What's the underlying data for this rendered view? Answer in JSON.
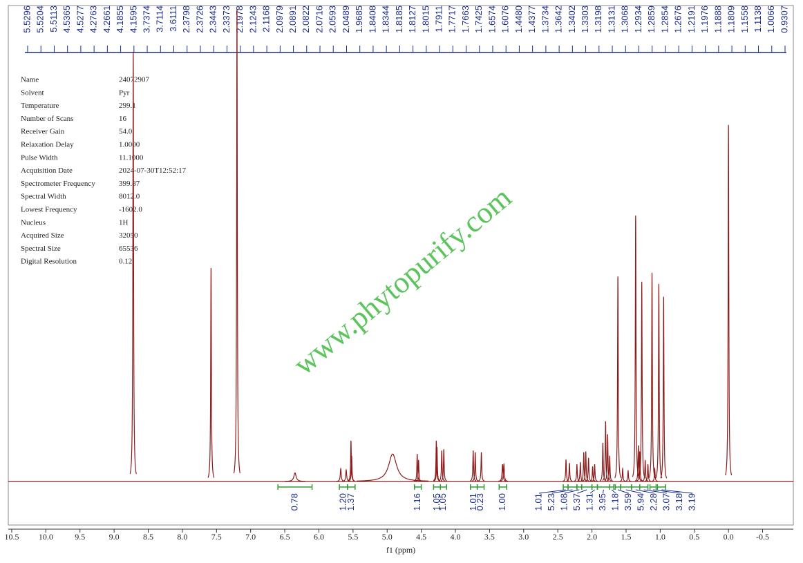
{
  "chart_data": {
    "type": "nmr",
    "xlabel": "f1 (ppm)",
    "xlim": [
      10.55,
      -0.95
    ],
    "xticks": [
      10.5,
      {
        "value": 10,
        "label": "10.0"
      },
      9.5,
      {
        "value": 9,
        "label": "9.0"
      },
      8.5,
      {
        "value": 8,
        "label": "8.0"
      },
      7.5,
      {
        "value": 7,
        "label": "7.0"
      },
      6.5,
      {
        "value": 6,
        "label": "6.0"
      },
      5.5,
      {
        "value": 5,
        "label": "5.0"
      },
      4.5,
      {
        "value": 4,
        "label": "4.0"
      },
      3.5,
      {
        "value": 3,
        "label": "3.0"
      },
      2.5,
      {
        "value": 2,
        "label": "2.0"
      },
      1.5,
      {
        "value": 1,
        "label": "1.0"
      },
      0.5,
      {
        "value": 0,
        "label": "0.0"
      },
      -0.5
    ],
    "ylim": [
      0,
      100
    ],
    "color": "#8b1a1a",
    "watermark": "www.phytopurify.com",
    "parameters": [
      [
        "Name",
        "24072907"
      ],
      [
        "Solvent",
        "Pyr"
      ],
      [
        "Temperature",
        "299.1"
      ],
      [
        "Number of Scans",
        "16"
      ],
      [
        "Receiver Gain",
        "54.0"
      ],
      [
        "Relaxation Delay",
        "1.0000"
      ],
      [
        "Pulse Width",
        "11.1000"
      ],
      [
        "Acquisition Date",
        "2024-07-30T12:52:17"
      ],
      [
        "Spectrometer Frequency",
        "399.87"
      ],
      [
        "Spectral Width",
        "8012.0"
      ],
      [
        "Lowest Frequency",
        "-1602.0"
      ],
      [
        "Nucleus",
        "1H"
      ],
      [
        "Acquired Size",
        "32050"
      ],
      [
        "Spectral Size",
        "65536"
      ],
      [
        "Digital Resolution",
        "0.12"
      ]
    ],
    "peak_labels": [
      5.5296,
      5.5204,
      5.5113,
      4.5365,
      4.5277,
      4.2763,
      4.2661,
      4.1855,
      4.1595,
      3.7374,
      3.7114,
      3.6111,
      2.3798,
      2.3726,
      2.3443,
      2.3373,
      2.1978,
      2.1243,
      2.1168,
      2.0979,
      2.0891,
      2.0822,
      2.0716,
      2.0593,
      2.0489,
      1.9685,
      1.8408,
      1.8344,
      1.8185,
      1.8127,
      1.8015,
      1.7911,
      1.7717,
      1.7663,
      1.7425,
      1.6574,
      1.6076,
      {
        "value": 1.448,
        "label": "1.4480"
      },
      1.4377,
      1.3734,
      1.3642,
      1.3402,
      1.3303,
      1.3198,
      1.3131,
      1.3068,
      1.2934,
      1.2859,
      1.2854,
      1.2676,
      1.2191,
      1.1976,
      1.1888,
      1.1809,
      1.1558,
      1.1138,
      1.0066,
      0.9307
    ],
    "peak_label_color": "#1a2a8a",
    "peaks": {
      "x": [
        8.72,
        7.58,
        7.2,
        6.35,
        5.68,
        5.6,
        5.53,
        5.52,
        4.92,
        4.56,
        4.54,
        4.28,
        4.27,
        4.2,
        4.17,
        3.74,
        3.71,
        3.62,
        3.31,
        3.29,
        2.38,
        2.33,
        2.22,
        2.17,
        2.12,
        2.09,
        2.05,
        1.99,
        1.96,
        1.84,
        1.8,
        1.77,
        1.74,
        1.62,
        1.55,
        1.47,
        1.36,
        1.32,
        1.3,
        1.27,
        1.22,
        1.18,
        1.12,
        1.08,
        1.02,
        0.95,
        0.0
      ],
      "values": [
        100,
        49.7,
        110,
        2,
        3,
        2.7,
        9.5,
        6,
        6.4,
        6.4,
        5,
        9.5,
        8,
        7.2,
        7.5,
        7.2,
        6.8,
        6.8,
        4,
        4,
        5.1,
        4.3,
        4,
        4.5,
        6.8,
        7,
        5.5,
        3.5,
        4,
        9,
        14,
        11,
        6,
        47.7,
        3,
        2.5,
        61.9,
        8.4,
        7,
        46.5,
        5,
        4,
        48.6,
        3,
        46,
        43,
        83
      ],
      "widths": [
        0.006,
        0.006,
        0.006,
        0.02,
        0.008,
        0.008,
        0.006,
        0.006,
        0.07,
        0.006,
        0.006,
        0.006,
        0.006,
        0.006,
        0.006,
        0.006,
        0.006,
        0.006,
        0.008,
        0.008,
        0.006,
        0.006,
        0.006,
        0.006,
        0.006,
        0.006,
        0.006,
        0.006,
        0.006,
        0.006,
        0.006,
        0.006,
        0.006,
        0.006,
        0.006,
        0.006,
        0.006,
        0.006,
        0.006,
        0.006,
        0.006,
        0.006,
        0.006,
        0.006,
        0.006,
        0.006,
        0.006
      ]
    },
    "integrals": {
      "values": [
        0.78,
        1.2,
        1.37,
        1.16,
        1.05,
        1.05,
        1.01,
        0.23,
        1,
        1.01,
        5.23,
        1.08,
        5.37,
        1.31,
        3.95,
        1.18,
        3.59,
        5.94,
        2.28,
        3.07,
        3.18,
        3.19
      ],
      "value_labels": [
        "0.78",
        "1.20",
        "1.37",
        "1.16",
        "1.05",
        "1.05",
        "1.01",
        "0.23",
        "1.00",
        "1.01",
        "5.23",
        "1.08",
        "5.37",
        "1.31",
        "3.95",
        "1.18",
        "3.59",
        "5.94",
        "2.28",
        "3.07",
        "3.18",
        "3.19"
      ],
      "from": [
        6.6,
        5.7,
        5.58,
        4.6,
        4.32,
        4.22,
        3.78,
        3.68,
        3.36,
        2.42,
        2.35,
        2.22,
        2.15,
        2.0,
        1.92,
        1.74,
        1.66,
        1.58,
        1.42,
        1.3,
        1.15,
        1.04
      ],
      "to": [
        6.1,
        5.58,
        5.47,
        4.5,
        4.22,
        4.13,
        3.68,
        3.58,
        3.25,
        2.35,
        2.22,
        2.15,
        2.0,
        1.92,
        1.74,
        1.68,
        1.58,
        1.42,
        1.3,
        1.18,
        1.06,
        0.92
      ],
      "color": "#2e9e2e",
      "label_color": "#1a2a8a"
    }
  }
}
